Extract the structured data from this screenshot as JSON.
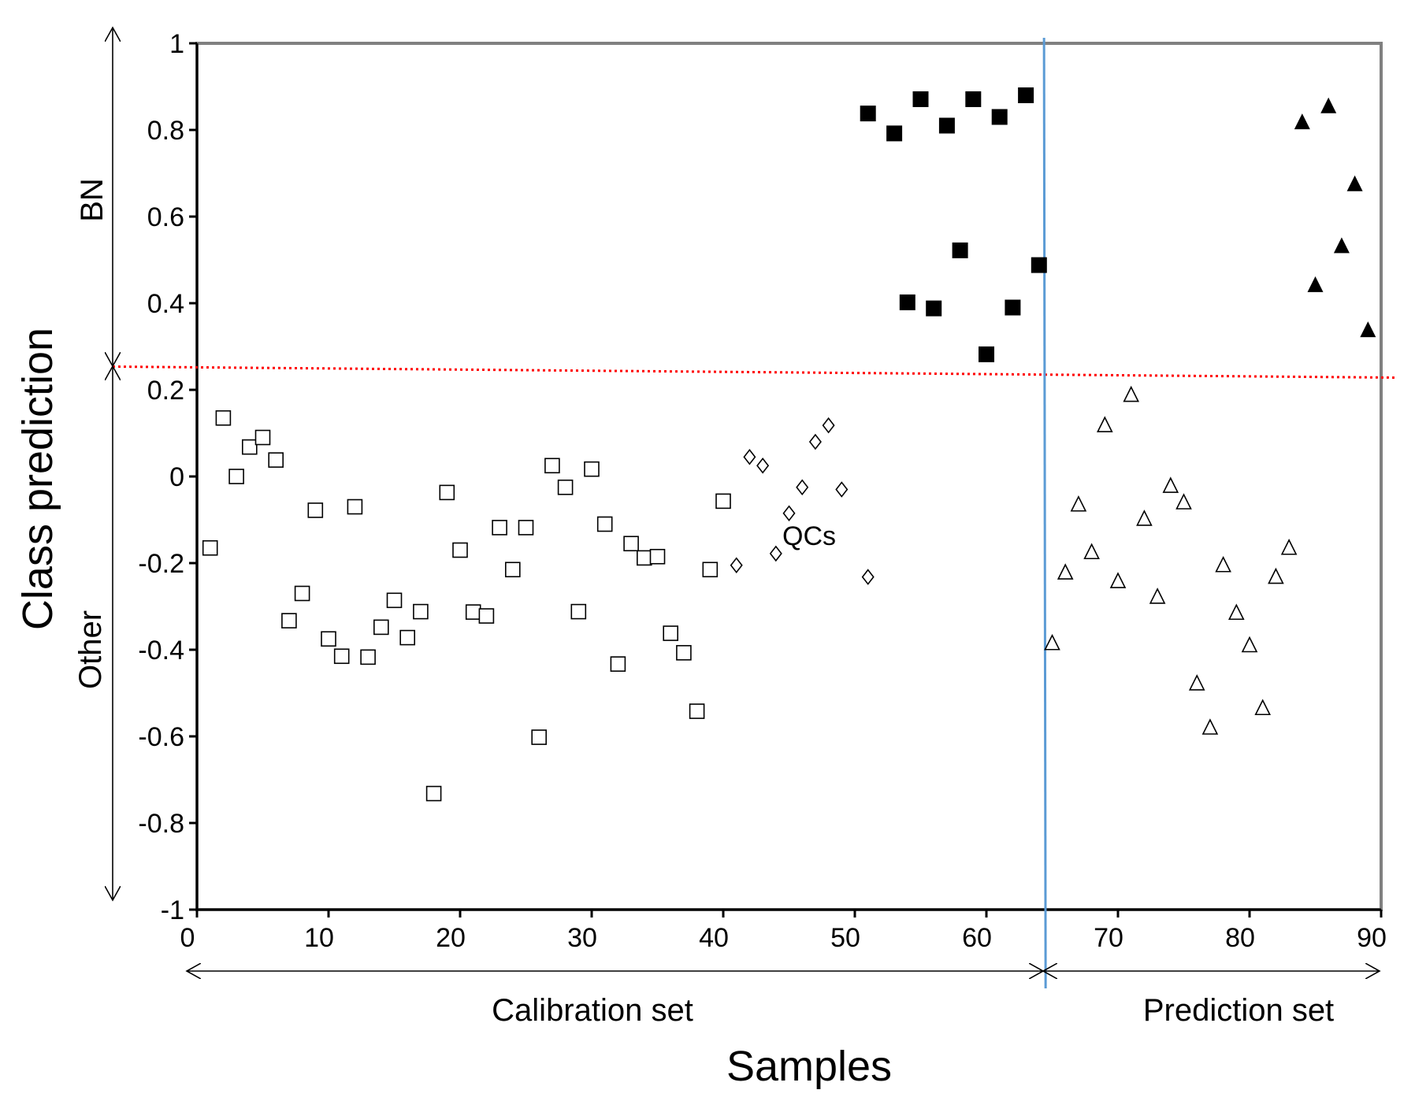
{
  "chart_data": {
    "type": "scatter",
    "title": "",
    "xlabel": "Samples",
    "ylabel": "Class prediction",
    "xlim": [
      0,
      90
    ],
    "ylim": [
      -1,
      1
    ],
    "xticks": [
      0,
      10,
      20,
      30,
      40,
      50,
      60,
      70,
      80,
      90
    ],
    "yticks": [
      -1,
      -0.8,
      -0.6,
      -0.4,
      -0.2,
      0,
      0.2,
      0.4,
      0.6,
      0.8,
      1
    ],
    "grid": false,
    "threshold": 0.25,
    "split_x": 64.5,
    "annotations": {
      "bn": "BN",
      "other": "Other",
      "calibration": "Calibration set",
      "prediction": "Prediction set",
      "qcs": "QCs"
    },
    "colors": {
      "threshold": "#ff0000",
      "split": "#5b9bd5",
      "axis": "#808080",
      "marker": "#000000"
    },
    "series": [
      {
        "name": "Calibration - Other",
        "marker": "open-square",
        "points": [
          [
            1,
            -0.165
          ],
          [
            2,
            0.135
          ],
          [
            3,
            0.0
          ],
          [
            4,
            0.068
          ],
          [
            5,
            0.09
          ],
          [
            6,
            0.038
          ],
          [
            7,
            -0.333
          ],
          [
            8,
            -0.27
          ],
          [
            9,
            -0.078
          ],
          [
            10,
            -0.375
          ],
          [
            11,
            -0.415
          ],
          [
            12,
            -0.07
          ],
          [
            13,
            -0.417
          ],
          [
            14,
            -0.348
          ],
          [
            15,
            -0.286
          ],
          [
            16,
            -0.372
          ],
          [
            17,
            -0.312
          ],
          [
            18,
            -0.732
          ],
          [
            19,
            -0.037
          ],
          [
            20,
            -0.17
          ],
          [
            21,
            -0.313
          ],
          [
            22,
            -0.322
          ],
          [
            23,
            -0.118
          ],
          [
            24,
            -0.215
          ],
          [
            25,
            -0.118
          ],
          [
            26,
            -0.602
          ],
          [
            27,
            0.025
          ],
          [
            28,
            -0.025
          ],
          [
            29,
            -0.312
          ],
          [
            30,
            0.017
          ],
          [
            31,
            -0.11
          ],
          [
            32,
            -0.433
          ],
          [
            33,
            -0.155
          ],
          [
            34,
            -0.188
          ],
          [
            35,
            -0.185
          ],
          [
            36,
            -0.362
          ],
          [
            37,
            -0.407
          ],
          [
            38,
            -0.542
          ],
          [
            39,
            -0.215
          ],
          [
            40,
            -0.057
          ]
        ]
      },
      {
        "name": "QCs",
        "marker": "open-diamond",
        "points": [
          [
            41,
            -0.205
          ],
          [
            42,
            0.045
          ],
          [
            43,
            0.025
          ],
          [
            44,
            -0.178
          ],
          [
            45,
            -0.085
          ],
          [
            46,
            -0.025
          ],
          [
            47,
            0.08
          ],
          [
            48,
            0.118
          ],
          [
            49,
            -0.03
          ],
          [
            51,
            -0.232
          ]
        ]
      },
      {
        "name": "Calibration - BN",
        "marker": "filled-square",
        "points": [
          [
            51,
            0.838
          ],
          [
            53,
            0.792
          ],
          [
            54,
            0.402
          ],
          [
            55,
            0.871
          ],
          [
            56,
            0.388
          ],
          [
            57,
            0.81
          ],
          [
            58,
            0.522
          ],
          [
            59,
            0.871
          ],
          [
            60,
            0.282
          ],
          [
            61,
            0.83
          ],
          [
            62,
            0.39
          ],
          [
            63,
            0.88
          ],
          [
            64,
            0.488
          ]
        ]
      },
      {
        "name": "Prediction - Other",
        "marker": "open-triangle",
        "points": [
          [
            65,
            -0.385
          ],
          [
            66,
            -0.222
          ],
          [
            67,
            -0.065
          ],
          [
            68,
            -0.175
          ],
          [
            69,
            0.118
          ],
          [
            70,
            -0.242
          ],
          [
            71,
            0.188
          ],
          [
            72,
            -0.098
          ],
          [
            73,
            -0.278
          ],
          [
            74,
            -0.022
          ],
          [
            75,
            -0.06
          ],
          [
            76,
            -0.478
          ],
          [
            77,
            -0.58
          ],
          [
            78,
            -0.205
          ],
          [
            79,
            -0.315
          ],
          [
            80,
            -0.39
          ],
          [
            81,
            -0.535
          ],
          [
            82,
            -0.232
          ],
          [
            83,
            -0.165
          ]
        ]
      },
      {
        "name": "Prediction - BN",
        "marker": "filled-triangle",
        "points": [
          [
            84,
            0.818
          ],
          [
            85,
            0.442
          ],
          [
            86,
            0.855
          ],
          [
            87,
            0.532
          ],
          [
            88,
            0.675
          ],
          [
            89,
            0.338
          ]
        ]
      }
    ]
  }
}
